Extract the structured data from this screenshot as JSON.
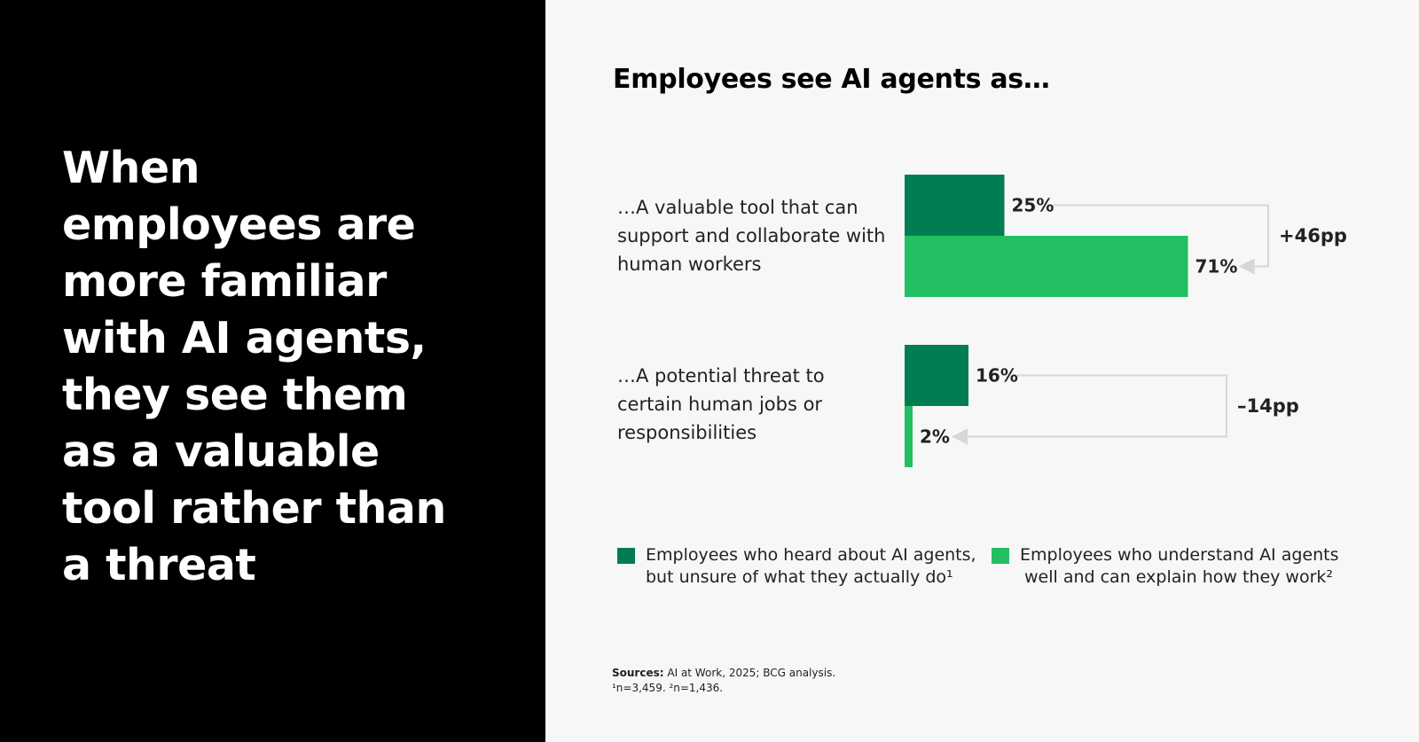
{
  "headline": "When employees are more familiar with AI agents, they see them as a valuable tool rather than a threat",
  "colors": {
    "dark_green": "#007e52",
    "light_green": "#21bf61",
    "connector": "#d6d6d6",
    "left_bg": "#000000"
  },
  "chart_data": {
    "type": "bar",
    "orientation": "horizontal",
    "title": "Employees see AI agents as…",
    "categories": [
      "…A valuable tool that can support and collaborate with human workers",
      "…A potential threat to certain human jobs or responsibilities"
    ],
    "series": [
      {
        "name": "Employees who heard about AI agents, but unsure of what they actually do¹",
        "values": [
          25,
          16
        ],
        "labels": [
          "25%",
          "16%"
        ]
      },
      {
        "name": "Employees who understand AI agents well and can explain how they work²",
        "values": [
          71,
          2
        ],
        "labels": [
          "71%",
          "2%"
        ]
      }
    ],
    "differences": [
      "+46pp",
      "–14pp"
    ],
    "xlim": [
      0,
      100
    ],
    "grid": false,
    "legend_position": "bottom"
  },
  "legend": [
    {
      "line1": "Employees who heard about AI agents,",
      "line2": "but unsure of what they actually do¹"
    },
    {
      "line1": "Employees who understand AI agents",
      "line2": "well and can explain how they work²"
    }
  ],
  "sources": {
    "label": "Sources:",
    "text": "AI at Work, 2025; BCG analysis.",
    "notes": "¹n=3,459.  ²n=1,436."
  }
}
